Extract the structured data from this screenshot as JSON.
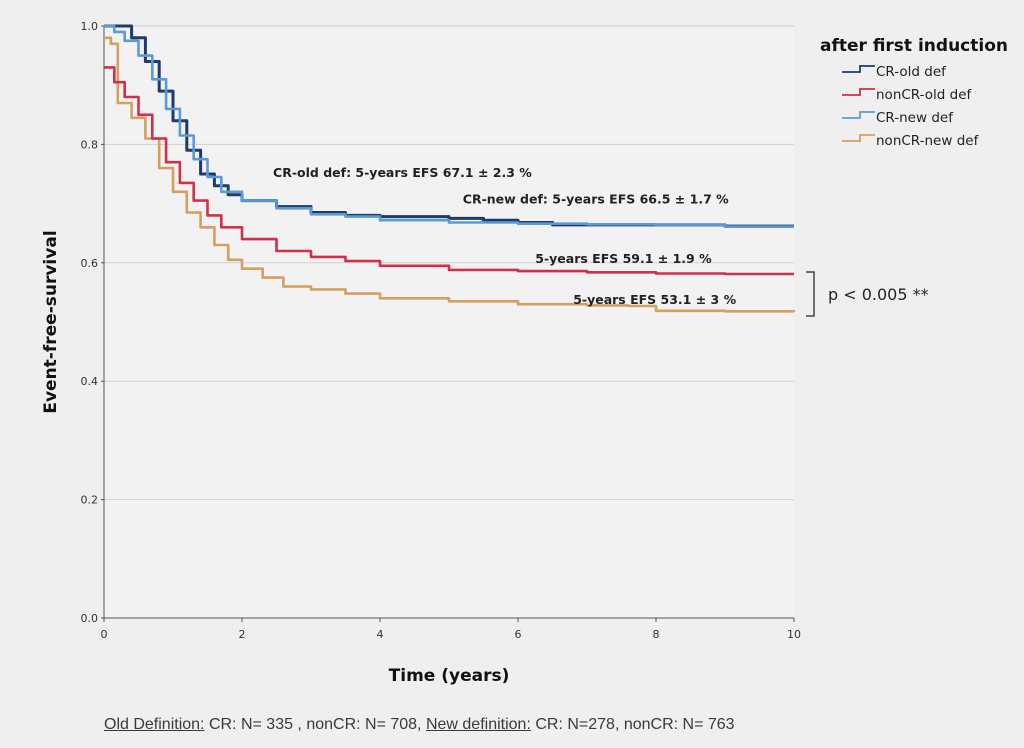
{
  "chart_data": {
    "type": "line",
    "ylabel": "Event-free-survival",
    "xlabel": "Time (years)",
    "xlim": [
      0,
      10
    ],
    "ylim": [
      0,
      1.0
    ],
    "x_ticks": [
      "0",
      "2",
      "4",
      "6",
      "8",
      "10"
    ],
    "y_ticks": [
      "0.0",
      "0.2",
      "0.4",
      "0.6",
      "0.8",
      "1.0"
    ],
    "grid": "horizontal",
    "legend": {
      "title": "after first induction",
      "placement": "top-right"
    },
    "series": [
      {
        "name": "CR-old def",
        "color": "#1f3a6b",
        "points": [
          [
            0,
            1.0
          ],
          [
            0.2,
            1.0
          ],
          [
            0.4,
            0.98
          ],
          [
            0.6,
            0.94
          ],
          [
            0.8,
            0.89
          ],
          [
            1.0,
            0.84
          ],
          [
            1.2,
            0.79
          ],
          [
            1.4,
            0.75
          ],
          [
            1.6,
            0.73
          ],
          [
            1.8,
            0.715
          ],
          [
            2.0,
            0.705
          ],
          [
            2.5,
            0.695
          ],
          [
            3.0,
            0.685
          ],
          [
            3.5,
            0.68
          ],
          [
            4.0,
            0.678
          ],
          [
            5.0,
            0.675
          ],
          [
            5.5,
            0.672
          ],
          [
            6.0,
            0.668
          ],
          [
            6.5,
            0.664
          ],
          [
            7.0,
            0.664
          ],
          [
            8.0,
            0.664
          ],
          [
            9.0,
            0.662
          ],
          [
            10.0,
            0.662
          ]
        ]
      },
      {
        "name": "nonCR-old def",
        "color": "#d0304a",
        "points": [
          [
            0,
            0.93
          ],
          [
            0.15,
            0.905
          ],
          [
            0.3,
            0.88
          ],
          [
            0.5,
            0.85
          ],
          [
            0.7,
            0.81
          ],
          [
            0.9,
            0.77
          ],
          [
            1.1,
            0.735
          ],
          [
            1.3,
            0.705
          ],
          [
            1.5,
            0.68
          ],
          [
            1.7,
            0.66
          ],
          [
            2.0,
            0.64
          ],
          [
            2.5,
            0.62
          ],
          [
            3.0,
            0.61
          ],
          [
            3.5,
            0.603
          ],
          [
            4.0,
            0.595
          ],
          [
            5.0,
            0.588
          ],
          [
            6.0,
            0.586
          ],
          [
            7.0,
            0.584
          ],
          [
            8.0,
            0.582
          ],
          [
            9.0,
            0.581
          ],
          [
            10.0,
            0.581
          ]
        ]
      },
      {
        "name": "CR-new def",
        "color": "#5b9bd5",
        "points": [
          [
            0,
            1.0
          ],
          [
            0.15,
            0.99
          ],
          [
            0.3,
            0.975
          ],
          [
            0.5,
            0.95
          ],
          [
            0.7,
            0.91
          ],
          [
            0.9,
            0.86
          ],
          [
            1.1,
            0.815
          ],
          [
            1.3,
            0.775
          ],
          [
            1.5,
            0.745
          ],
          [
            1.7,
            0.72
          ],
          [
            2.0,
            0.705
          ],
          [
            2.5,
            0.692
          ],
          [
            3.0,
            0.682
          ],
          [
            3.5,
            0.678
          ],
          [
            4.0,
            0.672
          ],
          [
            5.0,
            0.668
          ],
          [
            6.0,
            0.666
          ],
          [
            7.0,
            0.665
          ],
          [
            8.0,
            0.664
          ],
          [
            9.0,
            0.661
          ],
          [
            10.0,
            0.661
          ]
        ]
      },
      {
        "name": "nonCR-new def",
        "color": "#d4a060",
        "points": [
          [
            0,
            0.98
          ],
          [
            0.1,
            0.97
          ],
          [
            0.2,
            0.87
          ],
          [
            0.4,
            0.845
          ],
          [
            0.6,
            0.81
          ],
          [
            0.8,
            0.76
          ],
          [
            1.0,
            0.72
          ],
          [
            1.2,
            0.685
          ],
          [
            1.4,
            0.66
          ],
          [
            1.6,
            0.63
          ],
          [
            1.8,
            0.605
          ],
          [
            2.0,
            0.59
          ],
          [
            2.3,
            0.575
          ],
          [
            2.6,
            0.56
          ],
          [
            3.0,
            0.555
          ],
          [
            3.5,
            0.548
          ],
          [
            4.0,
            0.54
          ],
          [
            5.0,
            0.535
          ],
          [
            6.0,
            0.53
          ],
          [
            7.0,
            0.528
          ],
          [
            7.6,
            0.527
          ],
          [
            8.0,
            0.519
          ],
          [
            9.0,
            0.518
          ],
          [
            10.0,
            0.517
          ]
        ]
      }
    ],
    "annotations": [
      {
        "text": "CR-old def: 5-years EFS 67.1 ± 2.3 %",
        "x": 2.45,
        "y": 0.745
      },
      {
        "text": "CR-new def: 5-years EFS 66.5 ± 1.7 %",
        "x": 5.2,
        "y": 0.7
      },
      {
        "text": "5-years EFS 59.1 ± 1.9 %",
        "x": 6.25,
        "y": 0.6
      },
      {
        "text": "5-years EFS 53.1 ± 3 %",
        "x": 6.8,
        "y": 0.53
      }
    ],
    "p_value": "p < 0.005 **"
  },
  "footer": {
    "old_label": "Old Definition:",
    "old_text": " CR: N= 335 , nonCR: N= 708, ",
    "new_label": "New definition:",
    "new_text": " CR: N=278, nonCR: N= 763"
  }
}
